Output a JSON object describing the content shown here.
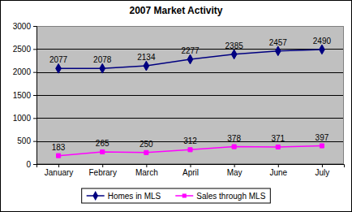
{
  "chart_data": {
    "type": "line",
    "title": "2007 Market Activity",
    "categories": [
      "January",
      "Febrary",
      "March",
      "April",
      "May",
      "June",
      "July"
    ],
    "series": [
      {
        "name": "Homes in MLS",
        "color": "#000080",
        "marker": "diamond",
        "values": [
          2077,
          2078,
          2134,
          2277,
          2385,
          2457,
          2490
        ]
      },
      {
        "name": "Sales through MLS",
        "color": "#ff00ff",
        "marker": "square",
        "values": [
          183,
          265,
          250,
          312,
          378,
          371,
          397
        ]
      }
    ],
    "ylim": [
      0,
      3000
    ],
    "yticks": [
      0,
      500,
      1000,
      1500,
      2000,
      2500,
      3000
    ],
    "grid": true,
    "data_labels": true,
    "legend": "bottom"
  }
}
